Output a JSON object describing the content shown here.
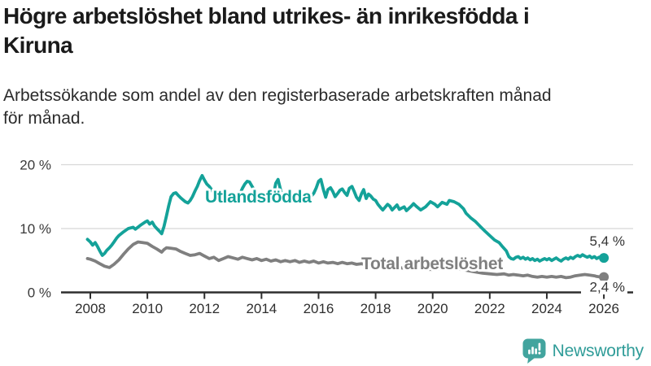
{
  "header": {
    "title_lines": [
      "Högre arbetslöshet bland utrikes- än inrikesfödda i",
      "Kiruna"
    ],
    "subtitle_lines": [
      "Arbetssökande som andel av den registerbaserade arbetskraften månad",
      "för månad."
    ]
  },
  "chart_data": {
    "type": "line",
    "title": "Högre arbetslöshet bland utrikes- än inrikesfödda i Kiruna",
    "subtitle": "Arbetssökande som andel av den registerbaserade arbetskraften månad för månad.",
    "xlabel": "",
    "ylabel": "",
    "ylim": [
      0,
      20
    ],
    "xlim": [
      2007.9,
      2027.0
    ],
    "grid": "horizontal",
    "legend_position": "inline-labels",
    "x_ticks": [
      2008,
      2010,
      2012,
      2014,
      2016,
      2018,
      2020,
      2022,
      2024,
      2026
    ],
    "x_tick_labels": [
      "2008",
      "2010",
      "2012",
      "2014",
      "2016",
      "2018",
      "2020",
      "2022",
      "2024",
      "2026"
    ],
    "y_ticks": [
      0,
      10,
      20
    ],
    "y_tick_labels": [
      "0 %",
      "10 %",
      "20 %"
    ],
    "grid_color": "#d8d8d8",
    "axis_color": "#2e2e2e",
    "series": [
      {
        "name": "Utlandsfödda",
        "color": "#14a299",
        "end_label": "5,4 %",
        "end_value": 5.4,
        "points": [
          [
            2007.9,
            8.3
          ],
          [
            2008.0,
            7.9
          ],
          [
            2008.08,
            7.4
          ],
          [
            2008.17,
            7.8
          ],
          [
            2008.25,
            7.2
          ],
          [
            2008.33,
            6.5
          ],
          [
            2008.42,
            5.8
          ],
          [
            2008.5,
            6.1
          ],
          [
            2008.58,
            6.6
          ],
          [
            2008.67,
            7.0
          ],
          [
            2008.75,
            7.4
          ],
          [
            2008.83,
            7.9
          ],
          [
            2008.92,
            8.5
          ],
          [
            2009.0,
            8.9
          ],
          [
            2009.17,
            9.5
          ],
          [
            2009.33,
            10.0
          ],
          [
            2009.5,
            10.2
          ],
          [
            2009.58,
            9.9
          ],
          [
            2009.75,
            10.5
          ],
          [
            2009.92,
            11.0
          ],
          [
            2010.0,
            11.2
          ],
          [
            2010.08,
            10.7
          ],
          [
            2010.17,
            11.0
          ],
          [
            2010.25,
            10.4
          ],
          [
            2010.33,
            10.0
          ],
          [
            2010.42,
            9.6
          ],
          [
            2010.5,
            9.2
          ],
          [
            2010.58,
            10.3
          ],
          [
            2010.67,
            12.0
          ],
          [
            2010.75,
            13.6
          ],
          [
            2010.83,
            15.0
          ],
          [
            2010.92,
            15.5
          ],
          [
            2011.0,
            15.6
          ],
          [
            2011.08,
            15.2
          ],
          [
            2011.17,
            14.8
          ],
          [
            2011.25,
            14.5
          ],
          [
            2011.33,
            14.2
          ],
          [
            2011.42,
            14.0
          ],
          [
            2011.5,
            14.4
          ],
          [
            2011.58,
            15.0
          ],
          [
            2011.67,
            15.9
          ],
          [
            2011.75,
            16.6
          ],
          [
            2011.83,
            17.5
          ],
          [
            2011.92,
            18.3
          ],
          [
            2012.0,
            17.6
          ],
          [
            2012.08,
            17.0
          ],
          [
            2012.17,
            16.6
          ],
          [
            2012.25,
            16.1
          ],
          [
            2012.33,
            15.5
          ],
          [
            2012.42,
            14.9
          ],
          [
            2012.5,
            14.5
          ],
          [
            2012.58,
            15.1
          ],
          [
            2012.67,
            14.8
          ],
          [
            2012.75,
            14.4
          ],
          [
            2012.83,
            14.8
          ],
          [
            2012.92,
            14.3
          ],
          [
            2013.0,
            14.9
          ],
          [
            2013.08,
            15.2
          ],
          [
            2013.17,
            14.8
          ],
          [
            2013.25,
            15.5
          ],
          [
            2013.33,
            16.3
          ],
          [
            2013.42,
            17.0
          ],
          [
            2013.5,
            17.4
          ],
          [
            2013.58,
            17.3
          ],
          [
            2013.67,
            16.6
          ],
          [
            2013.75,
            16.0
          ],
          [
            2013.83,
            15.5
          ],
          [
            2013.92,
            15.0
          ],
          [
            2014.0,
            14.7
          ],
          [
            2014.08,
            15.1
          ],
          [
            2014.17,
            14.6
          ],
          [
            2014.25,
            15.0
          ],
          [
            2014.33,
            14.5
          ],
          [
            2014.42,
            15.3
          ],
          [
            2014.5,
            17.1
          ],
          [
            2014.58,
            17.7
          ],
          [
            2014.67,
            16.0
          ],
          [
            2014.75,
            14.8
          ],
          [
            2014.83,
            14.4
          ],
          [
            2014.92,
            14.7
          ],
          [
            2015.0,
            15.0
          ],
          [
            2015.08,
            14.6
          ],
          [
            2015.17,
            14.9
          ],
          [
            2015.25,
            15.3
          ],
          [
            2015.33,
            14.9
          ],
          [
            2015.42,
            15.2
          ],
          [
            2015.5,
            14.7
          ],
          [
            2015.58,
            15.0
          ],
          [
            2015.67,
            15.4
          ],
          [
            2015.75,
            15.1
          ],
          [
            2015.83,
            15.5
          ],
          [
            2015.92,
            16.4
          ],
          [
            2016.0,
            17.4
          ],
          [
            2016.08,
            17.7
          ],
          [
            2016.17,
            16.1
          ],
          [
            2016.25,
            14.9
          ],
          [
            2016.33,
            16.1
          ],
          [
            2016.42,
            16.4
          ],
          [
            2016.5,
            15.8
          ],
          [
            2016.58,
            15.0
          ],
          [
            2016.67,
            15.5
          ],
          [
            2016.75,
            16.0
          ],
          [
            2016.83,
            16.2
          ],
          [
            2016.92,
            15.6
          ],
          [
            2017.0,
            15.2
          ],
          [
            2017.08,
            16.3
          ],
          [
            2017.17,
            16.6
          ],
          [
            2017.25,
            15.8
          ],
          [
            2017.33,
            14.9
          ],
          [
            2017.42,
            14.4
          ],
          [
            2017.5,
            15.4
          ],
          [
            2017.58,
            16.1
          ],
          [
            2017.67,
            14.7
          ],
          [
            2017.75,
            15.4
          ],
          [
            2017.83,
            15.1
          ],
          [
            2017.92,
            14.6
          ],
          [
            2018.0,
            14.4
          ],
          [
            2018.08,
            13.8
          ],
          [
            2018.17,
            13.3
          ],
          [
            2018.25,
            12.9
          ],
          [
            2018.42,
            13.8
          ],
          [
            2018.5,
            13.5
          ],
          [
            2018.58,
            12.9
          ],
          [
            2018.75,
            13.7
          ],
          [
            2018.83,
            13.0
          ],
          [
            2019.0,
            13.4
          ],
          [
            2019.08,
            12.8
          ],
          [
            2019.25,
            13.5
          ],
          [
            2019.33,
            13.9
          ],
          [
            2019.42,
            13.5
          ],
          [
            2019.58,
            12.9
          ],
          [
            2019.75,
            13.4
          ],
          [
            2019.92,
            14.2
          ],
          [
            2020.08,
            13.8
          ],
          [
            2020.17,
            13.4
          ],
          [
            2020.33,
            14.1
          ],
          [
            2020.5,
            13.8
          ],
          [
            2020.58,
            14.4
          ],
          [
            2020.75,
            14.2
          ],
          [
            2020.92,
            13.8
          ],
          [
            2021.08,
            13.1
          ],
          [
            2021.17,
            12.4
          ],
          [
            2021.33,
            11.7
          ],
          [
            2021.5,
            11.1
          ],
          [
            2021.67,
            10.3
          ],
          [
            2021.83,
            9.6
          ],
          [
            2022.0,
            8.9
          ],
          [
            2022.17,
            8.2
          ],
          [
            2022.33,
            7.8
          ],
          [
            2022.42,
            7.3
          ],
          [
            2022.58,
            6.5
          ],
          [
            2022.67,
            5.6
          ],
          [
            2022.75,
            5.3
          ],
          [
            2022.83,
            5.2
          ],
          [
            2022.92,
            5.5
          ],
          [
            2023.0,
            5.6
          ],
          [
            2023.08,
            5.3
          ],
          [
            2023.17,
            5.5
          ],
          [
            2023.25,
            5.2
          ],
          [
            2023.33,
            5.4
          ],
          [
            2023.42,
            5.1
          ],
          [
            2023.5,
            5.3
          ],
          [
            2023.58,
            5.0
          ],
          [
            2023.67,
            5.2
          ],
          [
            2023.75,
            4.9
          ],
          [
            2023.83,
            5.1
          ],
          [
            2023.92,
            5.3
          ],
          [
            2024.0,
            5.1
          ],
          [
            2024.08,
            5.3
          ],
          [
            2024.17,
            5.0
          ],
          [
            2024.25,
            5.2
          ],
          [
            2024.33,
            5.4
          ],
          [
            2024.42,
            5.1
          ],
          [
            2024.5,
            4.9
          ],
          [
            2024.58,
            5.2
          ],
          [
            2024.67,
            5.4
          ],
          [
            2024.75,
            5.2
          ],
          [
            2024.83,
            5.5
          ],
          [
            2024.92,
            5.3
          ],
          [
            2025.0,
            5.6
          ],
          [
            2025.08,
            5.8
          ],
          [
            2025.17,
            5.6
          ],
          [
            2025.25,
            5.9
          ],
          [
            2025.33,
            5.7
          ],
          [
            2025.42,
            5.5
          ],
          [
            2025.5,
            5.7
          ],
          [
            2025.58,
            5.4
          ],
          [
            2025.67,
            5.6
          ],
          [
            2025.75,
            5.3
          ],
          [
            2025.83,
            5.5
          ],
          [
            2025.92,
            5.6
          ],
          [
            2026.0,
            5.4
          ]
        ]
      },
      {
        "name": "Total arbetslöshet",
        "color": "#7f7f7f",
        "end_label": "2,4 %",
        "end_value": 2.4,
        "points": [
          [
            2007.9,
            5.3
          ],
          [
            2008.0,
            5.2
          ],
          [
            2008.17,
            4.9
          ],
          [
            2008.33,
            4.5
          ],
          [
            2008.5,
            4.1
          ],
          [
            2008.67,
            3.9
          ],
          [
            2008.83,
            4.4
          ],
          [
            2009.0,
            5.1
          ],
          [
            2009.17,
            6.0
          ],
          [
            2009.33,
            6.8
          ],
          [
            2009.5,
            7.5
          ],
          [
            2009.67,
            7.9
          ],
          [
            2009.83,
            7.8
          ],
          [
            2010.0,
            7.7
          ],
          [
            2010.17,
            7.2
          ],
          [
            2010.33,
            6.8
          ],
          [
            2010.5,
            6.3
          ],
          [
            2010.58,
            6.7
          ],
          [
            2010.67,
            7.0
          ],
          [
            2010.83,
            6.9
          ],
          [
            2011.0,
            6.8
          ],
          [
            2011.17,
            6.4
          ],
          [
            2011.33,
            6.1
          ],
          [
            2011.5,
            5.8
          ],
          [
            2011.67,
            5.9
          ],
          [
            2011.83,
            6.1
          ],
          [
            2012.0,
            5.7
          ],
          [
            2012.17,
            5.3
          ],
          [
            2012.33,
            5.5
          ],
          [
            2012.5,
            5.0
          ],
          [
            2012.67,
            5.3
          ],
          [
            2012.83,
            5.6
          ],
          [
            2013.0,
            5.4
          ],
          [
            2013.17,
            5.2
          ],
          [
            2013.33,
            5.5
          ],
          [
            2013.5,
            5.3
          ],
          [
            2013.67,
            5.1
          ],
          [
            2013.83,
            5.3
          ],
          [
            2014.0,
            5.0
          ],
          [
            2014.17,
            5.2
          ],
          [
            2014.33,
            4.9
          ],
          [
            2014.5,
            5.1
          ],
          [
            2014.67,
            4.8
          ],
          [
            2014.83,
            5.0
          ],
          [
            2015.0,
            4.8
          ],
          [
            2015.17,
            5.0
          ],
          [
            2015.33,
            4.7
          ],
          [
            2015.5,
            4.9
          ],
          [
            2015.67,
            4.7
          ],
          [
            2015.83,
            4.9
          ],
          [
            2016.0,
            4.6
          ],
          [
            2016.17,
            4.8
          ],
          [
            2016.33,
            4.6
          ],
          [
            2016.5,
            4.7
          ],
          [
            2016.67,
            4.5
          ],
          [
            2016.83,
            4.7
          ],
          [
            2017.0,
            4.5
          ],
          [
            2017.17,
            4.6
          ],
          [
            2017.33,
            4.4
          ],
          [
            2017.5,
            4.5
          ],
          [
            2017.67,
            4.3
          ],
          [
            2017.83,
            4.4
          ],
          [
            2018.0,
            4.2
          ],
          [
            2018.25,
            4.1
          ],
          [
            2018.5,
            4.0
          ],
          [
            2018.75,
            3.9
          ],
          [
            2019.0,
            3.8
          ],
          [
            2019.25,
            3.7
          ],
          [
            2019.5,
            3.7
          ],
          [
            2019.75,
            3.6
          ],
          [
            2020.0,
            3.6
          ],
          [
            2020.25,
            3.7
          ],
          [
            2020.5,
            3.8
          ],
          [
            2020.75,
            3.7
          ],
          [
            2021.0,
            3.6
          ],
          [
            2021.25,
            3.4
          ],
          [
            2021.5,
            3.2
          ],
          [
            2021.75,
            3.0
          ],
          [
            2022.0,
            2.9
          ],
          [
            2022.25,
            2.8
          ],
          [
            2022.5,
            2.9
          ],
          [
            2022.67,
            2.7
          ],
          [
            2022.83,
            2.8
          ],
          [
            2023.0,
            2.7
          ],
          [
            2023.17,
            2.6
          ],
          [
            2023.33,
            2.7
          ],
          [
            2023.5,
            2.5
          ],
          [
            2023.67,
            2.4
          ],
          [
            2023.83,
            2.5
          ],
          [
            2024.0,
            2.4
          ],
          [
            2024.17,
            2.5
          ],
          [
            2024.33,
            2.4
          ],
          [
            2024.5,
            2.5
          ],
          [
            2024.67,
            2.3
          ],
          [
            2024.83,
            2.4
          ],
          [
            2025.0,
            2.6
          ],
          [
            2025.17,
            2.7
          ],
          [
            2025.33,
            2.8
          ],
          [
            2025.5,
            2.7
          ],
          [
            2025.67,
            2.6
          ],
          [
            2025.75,
            2.5
          ],
          [
            2025.92,
            2.4
          ],
          [
            2026.0,
            2.4
          ]
        ]
      }
    ]
  },
  "branding": {
    "name": "Newsworthy",
    "icon": "newsworthy-bar-chart-bubble-icon",
    "icon_color": "#42a49e",
    "text_color": "#2f9c98"
  }
}
